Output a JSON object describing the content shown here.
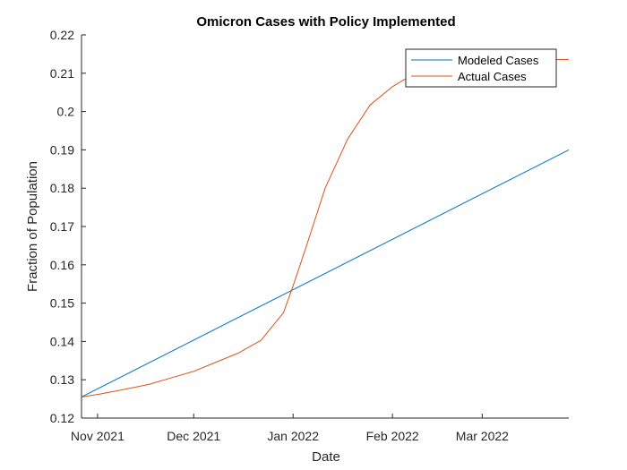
{
  "chart_data": {
    "type": "line",
    "title": "Omicron Cases with Policy Implemented",
    "xlabel": "Date",
    "ylabel": "Fraction of Population",
    "xlim": [
      "2021-10-27",
      "2022-03-28"
    ],
    "ylim": [
      0.12,
      0.22
    ],
    "x_ticks": [
      {
        "date": "2021-11-01",
        "label": "Nov 2021"
      },
      {
        "date": "2021-12-01",
        "label": "Dec 2021"
      },
      {
        "date": "2022-01-01",
        "label": "Jan 2022"
      },
      {
        "date": "2022-02-01",
        "label": "Feb 2022"
      },
      {
        "date": "2022-03-01",
        "label": "Mar 2022"
      }
    ],
    "y_ticks": [
      0.12,
      0.13,
      0.14,
      0.15,
      0.16,
      0.17,
      0.18,
      0.19,
      0.2,
      0.21,
      0.22
    ],
    "y_tick_labels": [
      "0.12",
      "0.13",
      "0.14",
      "0.15",
      "0.16",
      "0.17",
      "0.18",
      "0.19",
      "0.2",
      "0.21",
      "0.22"
    ],
    "grid": false,
    "legend": "top-right",
    "series": [
      {
        "name": "Modeled Cases",
        "color": "#0072BD",
        "x": [
          "2021-10-27",
          "2022-03-28"
        ],
        "y": [
          0.1255,
          0.19
        ]
      },
      {
        "name": "Actual Cases",
        "color": "#D95319",
        "x": [
          "2021-10-27",
          "2021-11-02",
          "2021-11-10",
          "2021-11-17",
          "2021-11-24",
          "2021-12-01",
          "2021-12-08",
          "2021-12-15",
          "2021-12-22",
          "2021-12-29",
          "2022-01-01",
          "2022-01-05",
          "2022-01-11",
          "2022-01-18",
          "2022-01-25",
          "2022-02-01",
          "2022-02-08",
          "2022-02-15",
          "2022-02-22",
          "2022-03-01",
          "2022-03-08",
          "2022-03-15",
          "2022-03-28"
        ],
        "y": [
          0.1255,
          0.1263,
          0.1276,
          0.1288,
          0.1305,
          0.1322,
          0.1346,
          0.137,
          0.1403,
          0.1475,
          0.1545,
          0.1645,
          0.18,
          0.1928,
          0.2017,
          0.2065,
          0.21,
          0.212,
          0.2128,
          0.2132,
          0.2134,
          0.2135,
          0.2136
        ]
      }
    ]
  }
}
